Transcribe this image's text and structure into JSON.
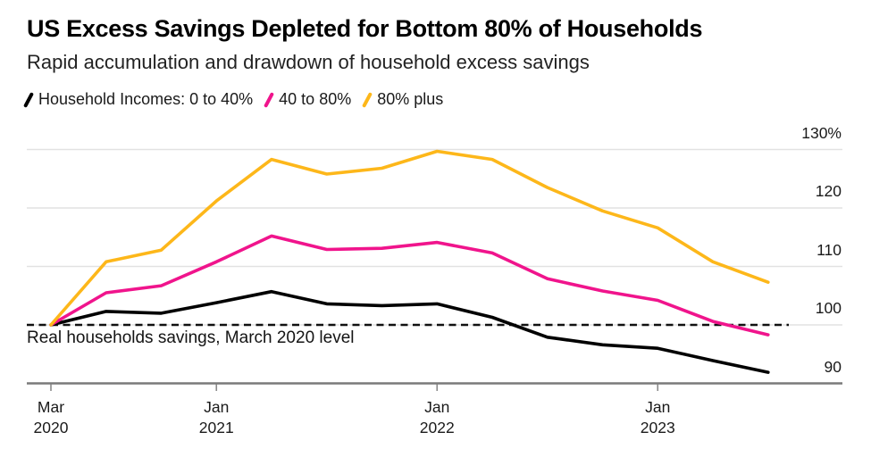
{
  "header": {
    "title": "US Excess Savings Depleted for Bottom 80% of Households",
    "subtitle": "Rapid accumulation and drawdown of household excess savings"
  },
  "legend": {
    "items": [
      {
        "label": "Household Incomes: 0 to 40%",
        "color": "#000000"
      },
      {
        "label": "40 to 80%",
        "color": "#F0148C"
      },
      {
        "label": "80% plus",
        "color": "#FDB71A"
      }
    ]
  },
  "annotation": {
    "text": "Real households savings, March 2020 level"
  },
  "colors": {
    "series_0_to_40": "#000000",
    "series_40_to_80": "#F0148C",
    "series_80_plus": "#FDB71A",
    "gridline": "#e2e2e2",
    "axis_line": "#7a7a7a",
    "tick_mark": "#8a8a8a",
    "baseline_dash": "#111111"
  },
  "chart_data": {
    "type": "line",
    "title": "US Excess Savings Depleted for Bottom 80% of Households",
    "subtitle": "Rapid accumulation and drawdown of household excess savings",
    "x_unit": "quarter",
    "x": [
      "Mar 2020",
      "Jun 2020",
      "Sep 2020",
      "Dec 2020",
      "Mar 2021",
      "Jun 2021",
      "Sep 2021",
      "Dec 2021",
      "Mar 2022",
      "Jun 2022",
      "Sep 2022",
      "Dec 2022",
      "Mar 2023",
      "Jun 2023"
    ],
    "series": [
      {
        "name": "Household Incomes: 0 to 40%",
        "color": "#000000",
        "values": [
          100,
          102.3,
          102.0,
          103.8,
          105.7,
          103.6,
          103.3,
          103.6,
          101.3,
          97.9,
          96.6,
          96.0,
          93.9,
          91.9
        ]
      },
      {
        "name": "40 to 80%",
        "color": "#F0148C",
        "values": [
          100,
          105.5,
          106.7,
          110.8,
          115.2,
          112.9,
          113.1,
          114.1,
          112.3,
          107.9,
          105.8,
          104.2,
          100.6,
          98.3
        ]
      },
      {
        "name": "80% plus",
        "color": "#FDB71A",
        "values": [
          100,
          110.8,
          112.8,
          121.2,
          128.3,
          125.8,
          126.8,
          129.7,
          128.3,
          123.5,
          119.5,
          116.6,
          110.8,
          107.3
        ]
      }
    ],
    "ylim": [
      90,
      131
    ],
    "yticks": [
      {
        "value": 130,
        "label": "130%"
      },
      {
        "value": 120,
        "label": "120"
      },
      {
        "value": 110,
        "label": "110"
      },
      {
        "value": 100,
        "label": "100"
      },
      {
        "value": 90,
        "label": "90"
      }
    ],
    "xticks": [
      {
        "index": 0,
        "line1": "Mar",
        "line2": "2020"
      },
      {
        "index": 3,
        "line1": "Jan",
        "line2": "2021"
      },
      {
        "index": 7,
        "line1": "Jan",
        "line2": "2022"
      },
      {
        "index": 11,
        "line1": "Jan",
        "line2": "2023"
      }
    ],
    "baseline": {
      "value": 100,
      "label": "Real households savings, March 2020 level"
    },
    "grid": "horizontal",
    "legend_position": "top-left",
    "y_axis_side": "right"
  }
}
